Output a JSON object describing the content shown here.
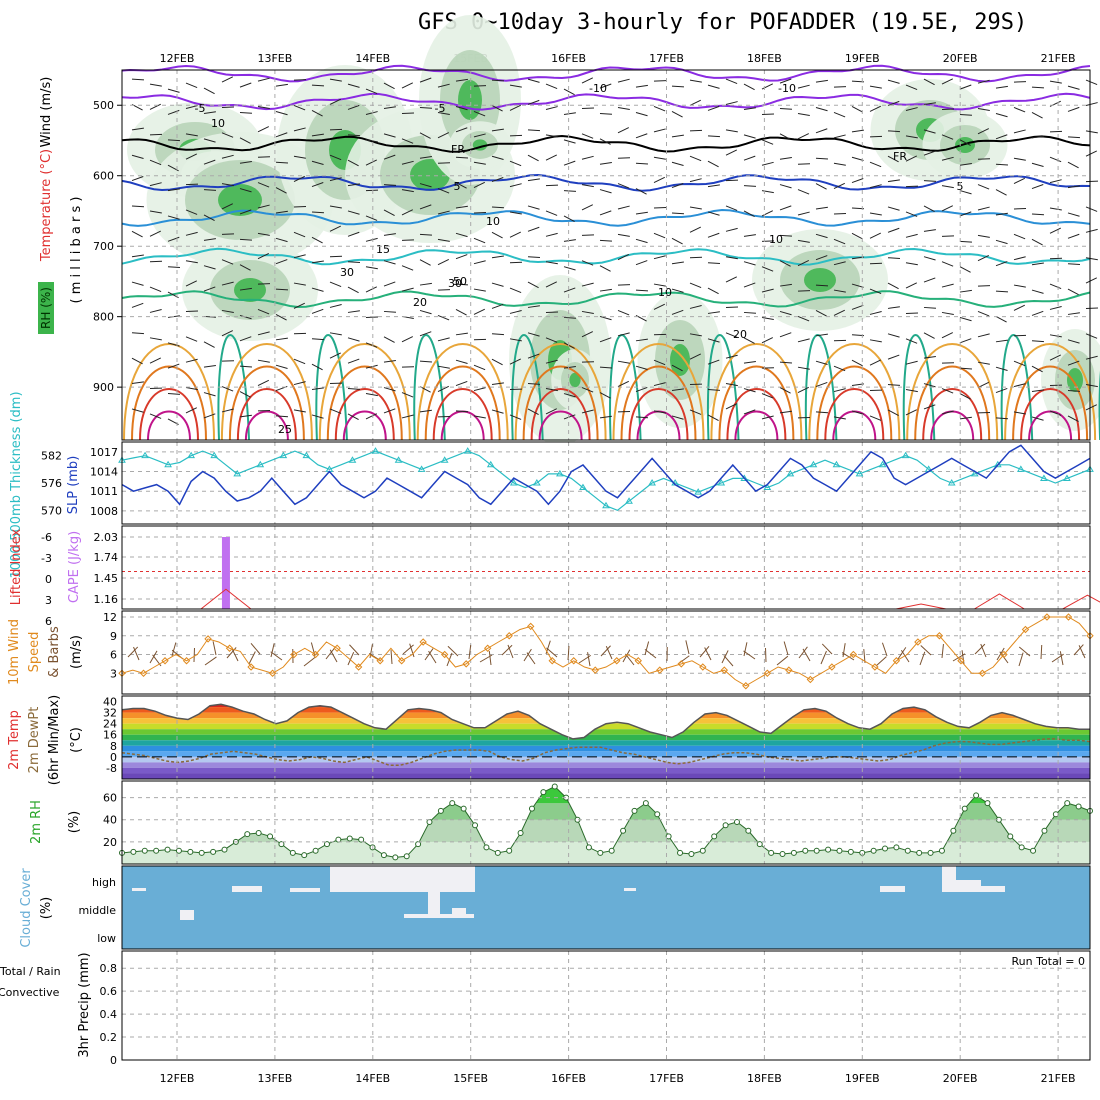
{
  "title": "GFS 0~10day 3-hourly for POFADDER (19.5E, 29S)",
  "dates": [
    "12FEB",
    "13FEB",
    "14FEB",
    "15FEB",
    "16FEB",
    "17FEB",
    "18FEB",
    "19FEB",
    "20FEB",
    "21FEB"
  ],
  "colors": {
    "rh_green": "#3cb44b",
    "temp_purple": "#8a2be2",
    "freezing": "#000000",
    "slp": "#1f3fbf",
    "thickness": "#2bbdc4",
    "cape": "#c070f0",
    "lifted": "#e03030",
    "wind": "#e08a1e",
    "rh": "#2aa52a",
    "cloud": "#69aed6",
    "precip_rain": "#2aa52a",
    "precip_conv": "#e03030"
  },
  "chart_data": [
    {
      "type": "heatmap",
      "panel": "upper-air",
      "ylabel_parts": [
        "RH (%)",
        "Temperature (°C)",
        "Wind (m/s)"
      ],
      "ylabel_units": "( m i l l i b a r s )",
      "yticks": [
        500,
        600,
        700,
        800,
        900
      ],
      "ylim": [
        975,
        450
      ],
      "contour_labels": [
        "-10",
        "-5",
        "FR",
        "5",
        "10",
        "15",
        "20",
        "25",
        "-10",
        "-5",
        "FR",
        "5",
        "10",
        "20",
        "10",
        "30",
        "30",
        "10",
        "50"
      ],
      "isotherms": [
        {
          "label": "-10",
          "level": 455,
          "color": "#8a2be2"
        },
        {
          "label": "-5",
          "level": 495,
          "color": "#8a2be2"
        },
        {
          "label": "FR",
          "level": 555,
          "color": "#000000"
        },
        {
          "label": "5",
          "level": 610,
          "color": "#1f3fbf"
        },
        {
          "label": "10",
          "level": 660,
          "color": "#2a8fd6"
        },
        {
          "label": "15",
          "level": 715,
          "color": "#2bbdc4"
        },
        {
          "label": "20",
          "level": 775,
          "color": "#26b07a"
        }
      ]
    },
    {
      "type": "line",
      "panel": "slp-thickness",
      "ylabel_left": "1000-500mb Thickness (dm)",
      "ylabel_right": "SLP (mb)",
      "yticks_thickness": [
        570,
        576,
        582
      ],
      "yticks_slp": [
        1008,
        1011,
        1014,
        1017
      ],
      "series": [
        {
          "name": "SLP (mb)",
          "values": [
            1012,
            1011,
            1011.5,
            1012,
            1011,
            1009,
            1012.5,
            1014,
            1013,
            1011,
            1009.5,
            1010,
            1011,
            1013,
            1011,
            1009,
            1010,
            1012,
            1014,
            1012,
            1011,
            1010,
            1011,
            1013,
            1012,
            1011,
            1010,
            1012,
            1014,
            1013,
            1012,
            1010,
            1009,
            1011,
            1013,
            1012,
            1011,
            1009,
            1011,
            1014,
            1015,
            1013,
            1011,
            1010,
            1012,
            1014,
            1016,
            1014,
            1012,
            1011,
            1010,
            1011,
            1013,
            1015,
            1013,
            1011,
            1012,
            1014,
            1016,
            1015,
            1013,
            1012,
            1011,
            1013,
            1015,
            1017,
            1016,
            1013,
            1012,
            1013,
            1014,
            1015,
            1016,
            1015,
            1014,
            1013,
            1015,
            1017,
            1018,
            1016,
            1014,
            1013,
            1014,
            1015,
            1016
          ]
        },
        {
          "name": "Thickness (dm)",
          "values": [
            581,
            581.5,
            582,
            581,
            580,
            580.5,
            582,
            583,
            582,
            580,
            578,
            579,
            580,
            581,
            582,
            583,
            582,
            580,
            579,
            580,
            581,
            582,
            583,
            582,
            581,
            580,
            579,
            580,
            581,
            582,
            583,
            582,
            580,
            578,
            576,
            575,
            576,
            578,
            578,
            577,
            575,
            573,
            571,
            570,
            572,
            574,
            576,
            577,
            576,
            575,
            574,
            575,
            576,
            577,
            577,
            576,
            575,
            576,
            578,
            579,
            580,
            581,
            580,
            579,
            578,
            579,
            580,
            581,
            582,
            581,
            579,
            577,
            576,
            577,
            578,
            579,
            580,
            580,
            579,
            578,
            577,
            576,
            577,
            578,
            579
          ]
        }
      ]
    },
    {
      "type": "bar",
      "panel": "cape-lifted",
      "ylabel_left": "Lifted Index",
      "ylabel_right": "CAPE (J/kg)",
      "yticks_lifted": [
        "-6",
        "-3",
        "0",
        "3",
        "6"
      ],
      "yticks_cape": [
        "2.03",
        "1.74",
        "1.45",
        "1.16"
      ],
      "cape_bar": {
        "date_index": 0.5,
        "value": 2.03
      },
      "lifted_peaks": [
        {
          "x": 0.5,
          "value": 3
        },
        {
          "x": 7.6,
          "value": 5.5
        },
        {
          "x": 8.4,
          "value": 3.8
        },
        {
          "x": 9.3,
          "value": 4
        }
      ]
    },
    {
      "type": "line",
      "panel": "wind",
      "ylabel": "10m Wind Speed & Barbs (m/s)",
      "yticks": [
        3,
        6,
        9,
        12
      ],
      "ylim": [
        0,
        12
      ],
      "series": [
        {
          "name": "10m Wind Speed",
          "values": [
            3,
            3.5,
            3,
            4,
            5,
            6,
            5,
            6,
            8.5,
            8,
            7,
            6.5,
            4,
            3.5,
            3,
            4,
            6,
            7,
            6,
            8,
            7,
            5.5,
            4,
            6,
            5,
            7,
            5,
            6,
            8,
            7,
            6,
            4,
            4.5,
            6,
            7,
            8,
            9,
            10,
            10.5,
            8,
            5,
            4,
            5,
            4,
            3.5,
            4,
            5,
            6,
            5,
            3,
            3.5,
            4,
            4.5,
            5,
            4,
            3,
            3.5,
            2,
            1,
            2,
            3,
            4,
            3.5,
            3,
            2,
            3,
            4,
            5,
            6,
            5,
            4,
            3,
            5,
            6,
            8,
            9,
            9,
            7,
            5,
            3,
            3,
            4,
            6,
            8,
            10,
            11,
            12,
            12,
            12,
            11,
            9
          ]
        }
      ]
    },
    {
      "type": "area",
      "panel": "temperature",
      "ylabel": "2m Temp 2m DewPt (6hr Min/Max) (°C)",
      "yticks": [
        40,
        32,
        24,
        16,
        8,
        0,
        -8
      ],
      "ylim": [
        -16,
        44
      ],
      "series": [
        {
          "name": "2m Temp",
          "values": [
            34,
            35,
            35,
            33,
            30,
            28,
            27,
            31,
            37,
            38,
            36,
            33,
            31,
            27,
            24,
            26,
            32,
            36,
            37,
            36,
            32,
            28,
            24,
            21,
            20,
            27,
            34,
            35,
            34,
            32,
            27,
            24,
            21,
            21,
            26,
            31,
            33,
            30,
            24,
            20,
            16,
            13,
            14,
            20,
            24,
            25,
            24,
            21,
            18,
            16,
            14,
            18,
            25,
            31,
            32,
            30,
            26,
            22,
            18,
            17,
            23,
            29,
            34,
            35,
            33,
            28,
            24,
            21,
            20,
            24,
            31,
            35,
            36,
            34,
            29,
            25,
            22,
            21,
            25,
            30,
            32,
            30,
            27,
            24,
            22,
            21,
            21,
            20,
            20
          ]
        },
        {
          "name": "2m DewPt",
          "values": [
            3,
            2,
            1,
            -1,
            -3,
            -4,
            -3,
            -1,
            2,
            3,
            4,
            3,
            2,
            0,
            -2,
            -3,
            -2,
            0,
            -1,
            -3,
            -4,
            -2,
            0,
            -3,
            -6,
            -6,
            -4,
            -1,
            2,
            4,
            5,
            5,
            5,
            4,
            0,
            -2,
            -3,
            -1,
            3,
            5,
            6,
            7,
            7,
            7,
            5,
            3,
            2,
            0,
            -2,
            -4,
            -5,
            -4,
            -2,
            0,
            2,
            3,
            3,
            2,
            0,
            -1,
            -2,
            -3,
            -2,
            -1,
            0,
            0,
            -1,
            -2,
            -3,
            -2,
            1,
            3,
            5,
            8,
            10,
            11,
            11,
            10,
            9,
            9,
            10,
            11,
            12,
            13,
            13,
            12,
            12,
            11
          ]
        }
      ]
    },
    {
      "type": "area",
      "panel": "rh",
      "ylabel": "2m RH (%)",
      "yticks": [
        20,
        40,
        60
      ],
      "ylim": [
        0,
        75
      ],
      "series": [
        {
          "name": "2m RH",
          "values": [
            10,
            11,
            12,
            12,
            13,
            12,
            11,
            10,
            11,
            13,
            20,
            27,
            28,
            25,
            18,
            10,
            8,
            12,
            18,
            22,
            23,
            22,
            15,
            8,
            6,
            7,
            18,
            38,
            48,
            55,
            50,
            35,
            15,
            10,
            12,
            28,
            50,
            65,
            70,
            60,
            40,
            15,
            10,
            12,
            30,
            48,
            55,
            45,
            25,
            10,
            9,
            12,
            25,
            35,
            38,
            30,
            18,
            10,
            9,
            10,
            12,
            12,
            13,
            12,
            11,
            10,
            12,
            14,
            15,
            12,
            10,
            10,
            12,
            30,
            50,
            62,
            55,
            40,
            25,
            15,
            12,
            30,
            45,
            55,
            52,
            48
          ]
        }
      ]
    },
    {
      "type": "table",
      "panel": "cloud",
      "ylabel": "Cloud Cover (%)",
      "levels": [
        "high",
        "middle",
        "low"
      ]
    },
    {
      "type": "bar",
      "panel": "precip",
      "ylabel": "3hr Precip (mm)",
      "legend": [
        "Total / Rain",
        "Convective"
      ],
      "run_total": "Run Total = 0",
      "yticks": [
        "0",
        "0.2",
        "0.4",
        "0.6",
        "0.8"
      ],
      "ylim": [
        0,
        0.95
      ],
      "values": []
    }
  ]
}
